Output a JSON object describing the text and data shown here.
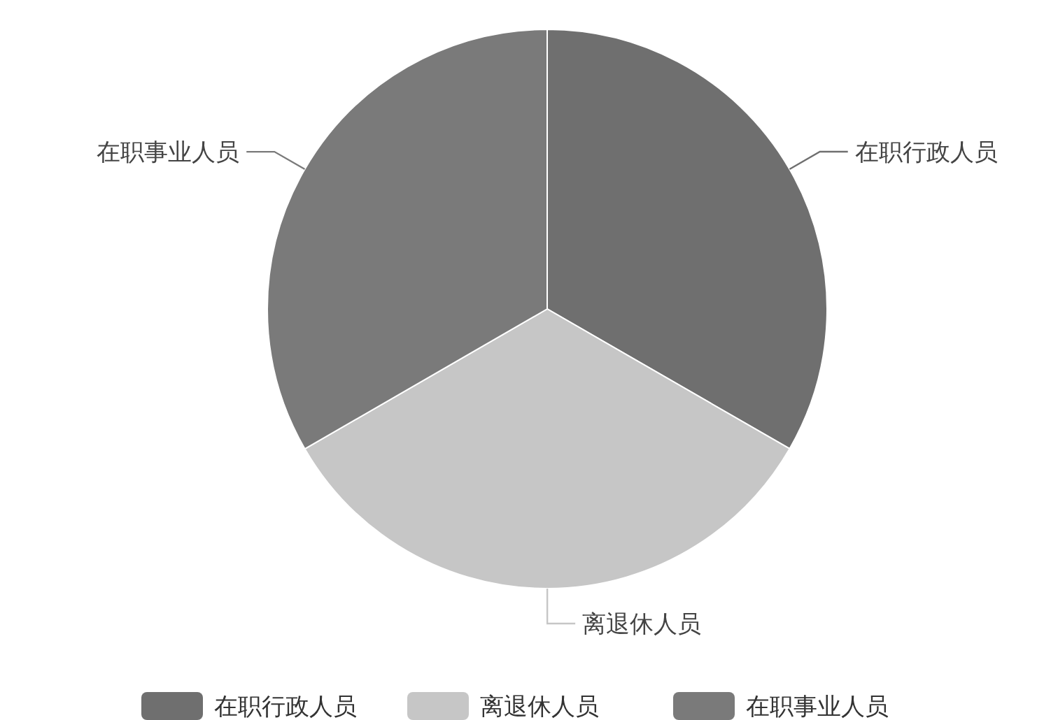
{
  "chart_data": {
    "type": "pie",
    "categories": [
      "在职行政人员",
      "离退休人员",
      "在职事业人员"
    ],
    "values": [
      33.33,
      33.33,
      33.34
    ],
    "colors": [
      "#6f6f6f",
      "#c6c6c6",
      "#7a7a7a"
    ],
    "legend": "bottom"
  }
}
